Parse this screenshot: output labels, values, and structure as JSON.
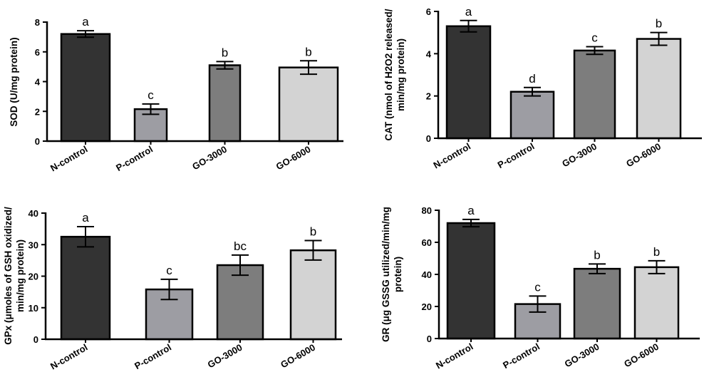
{
  "chart_data": [
    {
      "type": "bar",
      "ylabel": "SOD (U/mg protein)",
      "categories": [
        "N-control",
        "P-control",
        "GO-3000",
        "GO-6000"
      ],
      "values": [
        7.2,
        2.15,
        5.1,
        4.95
      ],
      "errors": [
        0.22,
        0.35,
        0.25,
        0.45
      ],
      "labels": [
        "a",
        "c",
        "b",
        "b"
      ],
      "colors": [
        "#333333",
        "#9d9da3",
        "#7d7d7d",
        "#d3d3d3"
      ],
      "ylim": [
        0,
        8
      ],
      "yticks": [
        0,
        2,
        4,
        6,
        8
      ]
    },
    {
      "type": "bar",
      "ylabel": [
        "CAT (nmol of H2O2 released/",
        "min/mg protein)"
      ],
      "categories": [
        "N-control",
        "P-control",
        "GO-3000",
        "GO-6000"
      ],
      "values": [
        5.3,
        2.2,
        4.15,
        4.7
      ],
      "errors": [
        0.27,
        0.2,
        0.18,
        0.3
      ],
      "labels": [
        "a",
        "d",
        "c",
        "b"
      ],
      "colors": [
        "#333333",
        "#9d9da3",
        "#7d7d7d",
        "#d3d3d3"
      ],
      "ylim": [
        0,
        6
      ],
      "yticks": [
        0,
        2,
        4,
        6
      ]
    },
    {
      "type": "bar",
      "ylabel": [
        "GPx (μmoles of GSH oxidized/",
        "min/mg protein)"
      ],
      "categories": [
        "N-control",
        "P-control",
        "GO-3000",
        "GO-6000"
      ],
      "values": [
        32.5,
        15.8,
        23.5,
        28.2
      ],
      "errors": [
        3.2,
        3.2,
        3.2,
        3.1
      ],
      "labels": [
        "a",
        "c",
        "bc",
        "b"
      ],
      "colors": [
        "#333333",
        "#9d9da3",
        "#7d7d7d",
        "#d3d3d3"
      ],
      "ylim": [
        0,
        40
      ],
      "yticks": [
        0,
        10,
        20,
        30,
        40
      ]
    },
    {
      "type": "bar",
      "ylabel": [
        "GR (μg GSSG utilized/min/mg",
        "protein)"
      ],
      "categories": [
        "N-control",
        "P-control",
        "GO-3000",
        "GO-6000"
      ],
      "values": [
        72,
        21.5,
        43.5,
        44.5
      ],
      "errors": [
        2.3,
        5,
        3,
        4
      ],
      "labels": [
        "a",
        "c",
        "b",
        "b"
      ],
      "colors": [
        "#333333",
        "#9d9da3",
        "#7d7d7d",
        "#d3d3d3"
      ],
      "ylim": [
        0,
        80
      ],
      "yticks": [
        0,
        20,
        40,
        60,
        80
      ]
    }
  ]
}
